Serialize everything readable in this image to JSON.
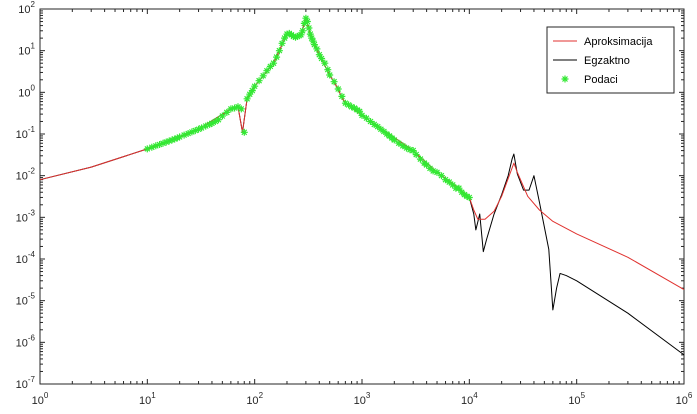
{
  "chart_data": {
    "type": "line",
    "xscale": "log",
    "yscale": "log",
    "xlim": [
      1,
      1000000
    ],
    "ylim": [
      1e-07,
      100
    ],
    "grid": false,
    "legend_placement": "top-right",
    "x_ticks": [
      {
        "value": 1,
        "base": "10",
        "exp": "0"
      },
      {
        "value": 10,
        "base": "10",
        "exp": "1"
      },
      {
        "value": 100,
        "base": "10",
        "exp": "2"
      },
      {
        "value": 1000,
        "base": "10",
        "exp": "3"
      },
      {
        "value": 10000,
        "base": "10",
        "exp": "4"
      },
      {
        "value": 100000,
        "base": "10",
        "exp": "5"
      },
      {
        "value": 1000000,
        "base": "10",
        "exp": "6"
      }
    ],
    "y_ticks": [
      {
        "value": 1e-07,
        "base": "10",
        "exp": "-7"
      },
      {
        "value": 1e-06,
        "base": "10",
        "exp": "-6"
      },
      {
        "value": 1e-05,
        "base": "10",
        "exp": "-5"
      },
      {
        "value": 0.0001,
        "base": "10",
        "exp": "-4"
      },
      {
        "value": 0.001,
        "base": "10",
        "exp": "-3"
      },
      {
        "value": 0.01,
        "base": "10",
        "exp": "-2"
      },
      {
        "value": 0.1,
        "base": "10",
        "exp": "-1"
      },
      {
        "value": 1,
        "base": "10",
        "exp": "0"
      },
      {
        "value": 10,
        "base": "10",
        "exp": "1"
      },
      {
        "value": 100,
        "base": "10",
        "exp": "2"
      }
    ],
    "series": [
      {
        "name": "Aproksimacija",
        "color": "#e0322f",
        "style": "line",
        "x": [
          1,
          3,
          10,
          30,
          60,
          70,
          77,
          85,
          100,
          150,
          200,
          250,
          270,
          300,
          330,
          360,
          400,
          500,
          600,
          640,
          700,
          1000,
          3000,
          5000,
          8000,
          10000,
          11000,
          12000,
          14000,
          17000,
          20000,
          23000,
          26000,
          28000,
          35000,
          45000,
          60000,
          100000,
          300000,
          1000000
        ],
        "y": [
          0.008,
          0.016,
          0.044,
          0.13,
          0.4,
          0.45,
          0.11,
          0.7,
          1.4,
          5,
          25,
          22,
          24,
          60,
          25,
          14,
          8,
          2.6,
          1.2,
          0.8,
          0.55,
          0.28,
          0.04,
          0.012,
          0.005,
          0.003,
          0.0015,
          0.0009,
          0.0009,
          0.0014,
          0.0032,
          0.0085,
          0.02,
          0.012,
          0.0032,
          0.0015,
          0.0008,
          0.0004,
          0.00011,
          1.85e-05
        ]
      },
      {
        "name": "Egzaktno",
        "color": "#000000",
        "style": "line",
        "x": [
          1,
          3,
          10,
          30,
          60,
          70,
          77,
          85,
          100,
          150,
          200,
          250,
          270,
          300,
          330,
          360,
          400,
          500,
          600,
          640,
          700,
          1000,
          3000,
          5000,
          8000,
          10000,
          11000,
          11500,
          12500,
          13500,
          14500,
          17000,
          20000,
          23000,
          25000,
          26000,
          28000,
          32000,
          36000,
          40000,
          45000,
          55000,
          60000,
          65000,
          70000,
          80000,
          100000,
          300000,
          1000000
        ],
        "y": [
          0.008,
          0.016,
          0.044,
          0.13,
          0.4,
          0.45,
          0.11,
          0.7,
          1.4,
          5,
          25,
          22,
          24,
          60,
          25,
          14,
          8,
          2.6,
          1.2,
          0.8,
          0.55,
          0.28,
          0.04,
          0.012,
          0.005,
          0.003,
          0.0012,
          0.0005,
          0.0012,
          0.00015,
          0.0003,
          0.0012,
          0.0035,
          0.01,
          0.025,
          0.033,
          0.011,
          0.0045,
          0.0045,
          0.01,
          0.0023,
          0.00017,
          6e-06,
          2e-05,
          4.5e-05,
          4e-05,
          3e-05,
          5e-06,
          5e-07
        ]
      },
      {
        "name": "Podaci",
        "color": "#33e833",
        "style": "marker-star",
        "x": [
          10,
          11,
          12,
          13,
          14,
          15,
          16,
          17,
          18,
          19,
          20,
          22,
          24,
          26,
          28,
          30,
          32,
          35,
          38,
          40,
          43,
          46,
          50,
          55,
          60,
          65,
          70,
          75,
          80,
          85,
          90,
          95,
          100,
          110,
          120,
          130,
          140,
          150,
          160,
          170,
          180,
          190,
          200,
          210,
          220,
          230,
          240,
          250,
          260,
          270,
          280,
          290,
          300,
          310,
          320,
          330,
          340,
          350,
          360,
          380,
          400,
          420,
          450,
          480,
          500,
          550,
          600,
          650,
          700,
          750,
          800,
          850,
          900,
          950,
          1000,
          1100,
          1200,
          1300,
          1400,
          1500,
          1600,
          1700,
          1800,
          1900,
          2000,
          2200,
          2400,
          2600,
          2800,
          3000,
          3200,
          3500,
          3800,
          4000,
          4300,
          4600,
          5000,
          5500,
          6000,
          6500,
          7000,
          7500,
          8000,
          8500,
          9000,
          9500,
          10000
        ],
        "y": [
          0.044,
          0.048,
          0.052,
          0.056,
          0.06,
          0.064,
          0.068,
          0.072,
          0.076,
          0.08,
          0.085,
          0.094,
          0.103,
          0.112,
          0.121,
          0.13,
          0.14,
          0.155,
          0.17,
          0.18,
          0.2,
          0.22,
          0.27,
          0.33,
          0.4,
          0.42,
          0.45,
          0.4,
          0.11,
          0.7,
          0.9,
          1.1,
          1.4,
          1.9,
          2.5,
          3.3,
          4.2,
          5,
          7,
          10,
          15,
          20,
          25,
          26,
          24,
          22,
          21,
          22,
          23,
          24,
          30,
          45,
          60,
          50,
          35,
          25,
          20,
          17,
          14,
          11,
          8,
          6.5,
          5,
          3.5,
          2.6,
          1.8,
          1.2,
          0.8,
          0.55,
          0.5,
          0.45,
          0.42,
          0.38,
          0.35,
          0.28,
          0.24,
          0.2,
          0.17,
          0.15,
          0.13,
          0.115,
          0.1,
          0.09,
          0.08,
          0.072,
          0.06,
          0.052,
          0.046,
          0.042,
          0.04,
          0.032,
          0.025,
          0.02,
          0.018,
          0.015,
          0.013,
          0.012,
          0.01,
          0.008,
          0.007,
          0.006,
          0.005,
          0.005,
          0.004,
          0.0035,
          0.0032,
          0.003
        ]
      }
    ]
  }
}
